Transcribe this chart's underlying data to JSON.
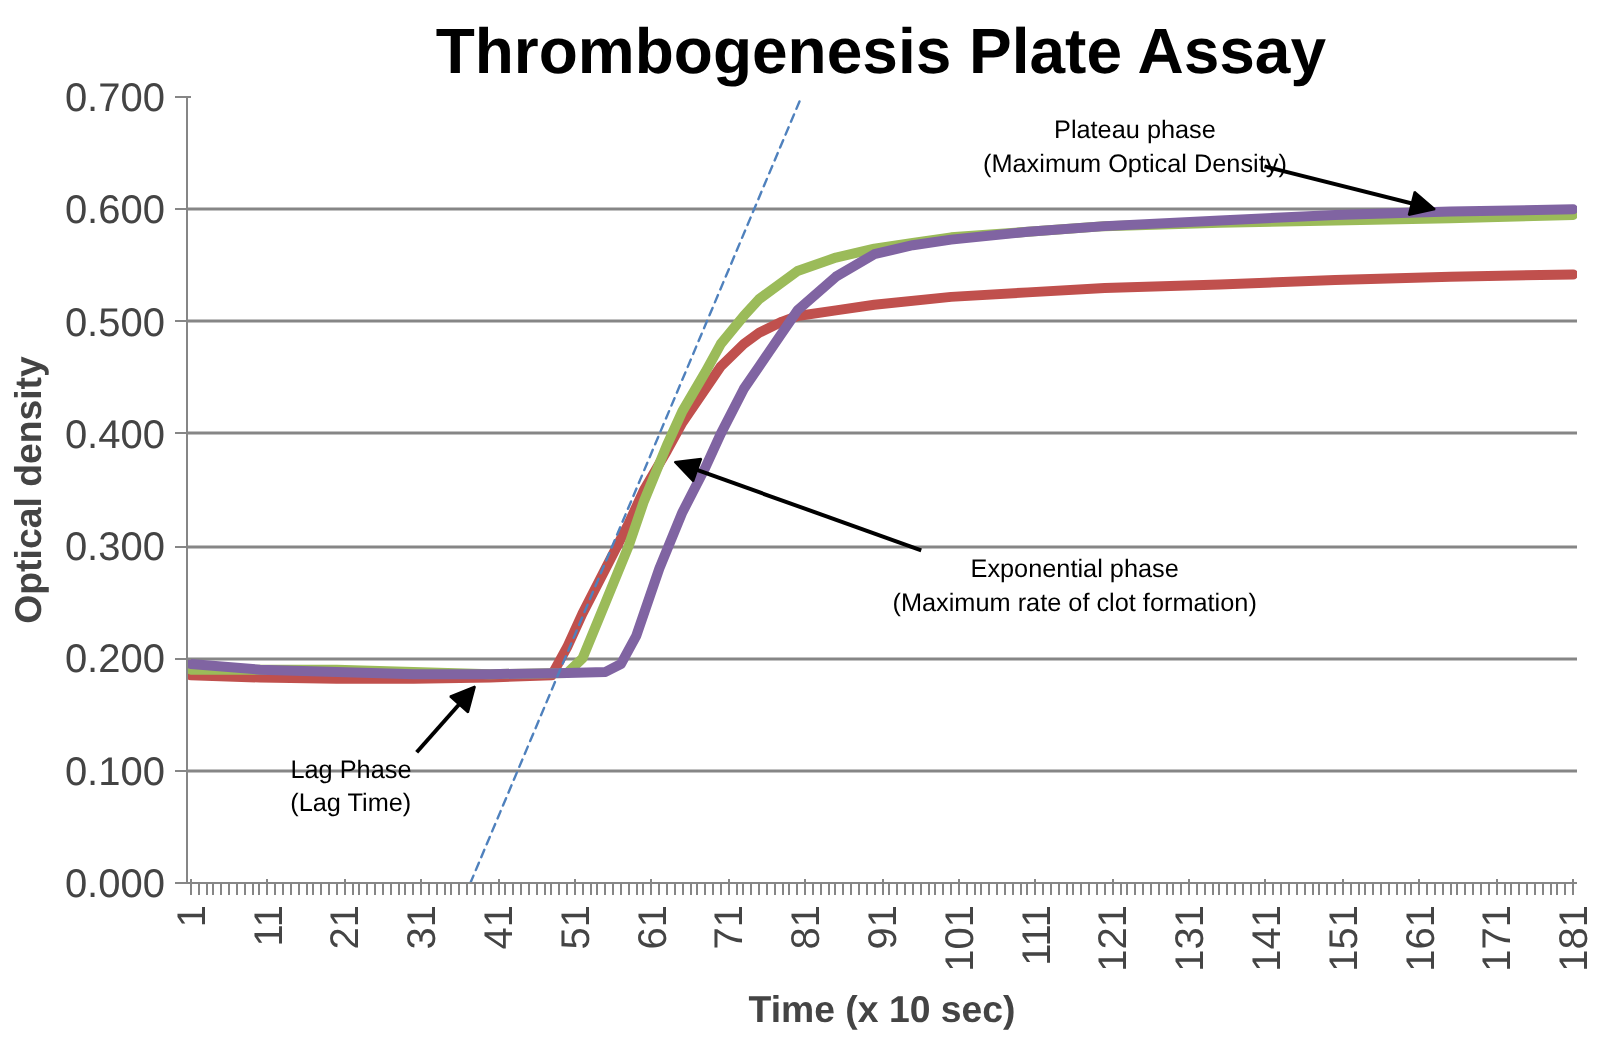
{
  "chart_data": {
    "type": "line",
    "title": "Thrombogenesis Plate Assay",
    "xlabel": "Time (x 10 sec)",
    "ylabel": "Optical density",
    "xlim": [
      0.5,
      181.5
    ],
    "ylim": [
      0,
      0.7
    ],
    "xticks": [
      1,
      11,
      21,
      31,
      41,
      51,
      61,
      71,
      81,
      91,
      101,
      111,
      121,
      131,
      141,
      151,
      161,
      171,
      181
    ],
    "yticks": [
      {
        "value": 0,
        "label": "0.000"
      },
      {
        "value": 0.1,
        "label": "0.100"
      },
      {
        "value": 0.2,
        "label": "0.200"
      },
      {
        "value": 0.3,
        "label": "0.300"
      },
      {
        "value": 0.4,
        "label": "0.400"
      },
      {
        "value": 0.5,
        "label": "0.500"
      },
      {
        "value": 0.6,
        "label": "0.600"
      },
      {
        "value": 0.7,
        "label": "0.700"
      }
    ],
    "grid": "y",
    "marker": "none",
    "line_style": "solid",
    "series": [
      {
        "color": "#c0504d",
        "x": [
          1,
          10,
          20,
          30,
          40,
          48,
          50,
          52,
          55,
          58,
          60,
          63,
          65,
          68,
          70,
          73,
          75,
          78,
          80,
          85,
          90,
          100,
          110,
          120,
          135,
          150,
          165,
          181
        ],
        "values": [
          0.185,
          0.183,
          0.182,
          0.182,
          0.183,
          0.185,
          0.21,
          0.24,
          0.28,
          0.32,
          0.35,
          0.385,
          0.41,
          0.44,
          0.46,
          0.48,
          0.49,
          0.5,
          0.505,
          0.51,
          0.515,
          0.522,
          0.526,
          0.53,
          0.533,
          0.537,
          0.54,
          0.542
        ]
      },
      {
        "color": "#9bbb59",
        "x": [
          1,
          10,
          20,
          30,
          40,
          50,
          52,
          55,
          58,
          60,
          63,
          65,
          68,
          70,
          73,
          75,
          78,
          80,
          85,
          90,
          95,
          100,
          110,
          120,
          135,
          150,
          165,
          181
        ],
        "values": [
          0.19,
          0.19,
          0.19,
          0.188,
          0.186,
          0.187,
          0.2,
          0.25,
          0.3,
          0.34,
          0.39,
          0.42,
          0.455,
          0.48,
          0.505,
          0.52,
          0.535,
          0.545,
          0.557,
          0.565,
          0.57,
          0.575,
          0.58,
          0.585,
          0.588,
          0.59,
          0.592,
          0.595
        ]
      },
      {
        "color": "#8064a2",
        "x": [
          1,
          10,
          20,
          30,
          40,
          50,
          55,
          57,
          59,
          62,
          65,
          68,
          70,
          73,
          75,
          78,
          80,
          85,
          90,
          95,
          100,
          110,
          120,
          135,
          150,
          165,
          181
        ],
        "values": [
          0.195,
          0.19,
          0.188,
          0.186,
          0.186,
          0.187,
          0.188,
          0.195,
          0.22,
          0.28,
          0.33,
          0.37,
          0.4,
          0.44,
          0.46,
          0.49,
          0.51,
          0.54,
          0.56,
          0.568,
          0.573,
          0.58,
          0.585,
          0.59,
          0.595,
          0.598,
          0.6
        ]
      },
      {
        "type": "line",
        "color": "#4f81bd",
        "line_style": "dashed",
        "x": [
          37.4,
          80.5
        ],
        "values": [
          0,
          0.7
        ]
      }
    ],
    "annotations": [
      {
        "text": "Plateau phase\n(Maximum Optical Density)",
        "x": 163,
        "y": 0.6
      },
      {
        "text": "Exponential phase\n(Maximum rate of clot formation)",
        "x": 64,
        "y": 0.375
      },
      {
        "text": "Lag Phase\n(Lag Time)",
        "x": 38,
        "y": 0.175
      }
    ]
  }
}
